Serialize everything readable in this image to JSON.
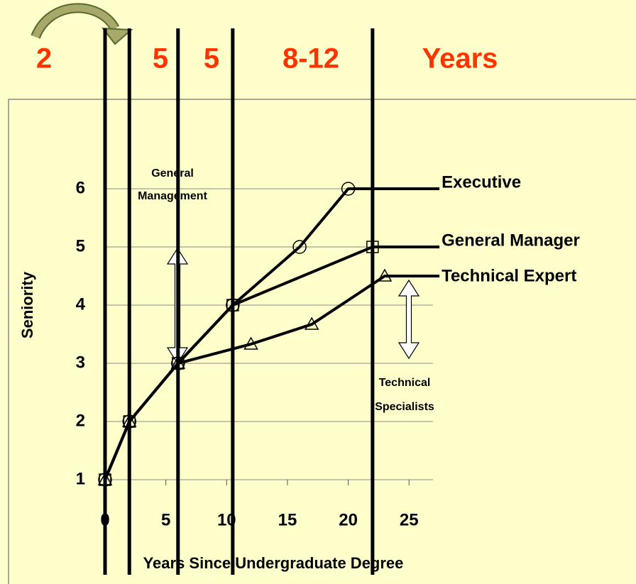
{
  "chart_data": {
    "type": "line",
    "top_labels": [
      "2",
      "5",
      "5",
      "8-12",
      "Years"
    ],
    "x_label": "Years Since Undergraduate Degree",
    "y_label": "Seniority",
    "xlim": [
      0,
      27
    ],
    "ylim": [
      1,
      6
    ],
    "xticks": [
      0,
      5,
      10,
      15,
      20,
      25
    ],
    "yticks": [
      1,
      2,
      3,
      4,
      5,
      6
    ],
    "grid": true,
    "vlines": [
      0,
      2,
      6,
      10.5,
      22
    ],
    "series": [
      {
        "name": "Executive",
        "color": "#000000",
        "marker": "circle",
        "x": [
          0,
          2,
          6,
          10.5,
          16,
          20,
          27.5
        ],
        "values": [
          1,
          2,
          3,
          4,
          5,
          6,
          6
        ]
      },
      {
        "name": "General Manager",
        "color": "#000000",
        "marker": "square",
        "x": [
          0,
          2,
          6,
          10.5,
          22,
          27.5
        ],
        "values": [
          1,
          2,
          3,
          4,
          5,
          5
        ]
      },
      {
        "name": "Technical Expert",
        "color": "#000000",
        "marker": "triangle",
        "x": [
          0,
          2,
          6,
          12,
          17,
          23,
          27.5
        ],
        "values": [
          1,
          2,
          3,
          3.33,
          3.67,
          4.5,
          4.5
        ]
      }
    ],
    "annotations": [
      "General Management",
      "Technical Specialists"
    ]
  }
}
